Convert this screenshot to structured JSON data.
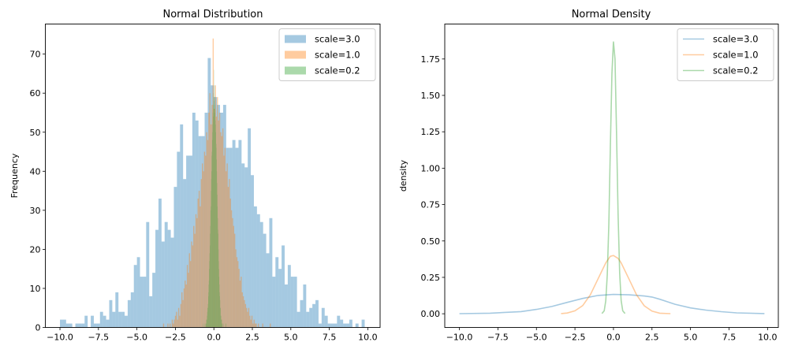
{
  "chart_data": [
    {
      "type": "bar",
      "subtype": "histogram",
      "title": "Normal Distribution",
      "xlabel": "",
      "ylabel": "Frequency",
      "xlim": [
        -10.95,
        10.8
      ],
      "ylim": [
        0,
        77.7
      ],
      "xticks": [
        -10,
        -7.5,
        -5,
        -2.5,
        0,
        2.5,
        5,
        7.5,
        10
      ],
      "xtick_labels": [
        "−10.0",
        "−7.5",
        "−5.0",
        "−2.5",
        "0.0",
        "2.5",
        "5.0",
        "7.5",
        "10.0"
      ],
      "yticks": [
        0,
        10,
        20,
        30,
        40,
        50,
        60,
        70
      ],
      "ytick_labels": [
        "0",
        "10",
        "20",
        "30",
        "40",
        "50",
        "60",
        "70"
      ],
      "grid": false,
      "legend": "top-right",
      "series": [
        {
          "name": "scale=3.0",
          "color": "#1f77b4",
          "alpha": 0.4,
          "bin_start": -10,
          "bin_width": 0.2,
          "values": [
            2,
            2,
            1,
            1,
            0,
            1,
            1,
            1,
            3,
            0,
            3,
            1,
            1,
            4,
            3,
            2,
            7,
            4,
            9,
            4,
            4,
            3,
            7,
            9,
            16,
            18,
            13,
            13,
            27,
            8,
            14,
            25,
            33,
            22,
            27,
            25,
            23,
            36,
            45,
            52,
            38,
            44,
            44,
            55,
            53,
            49,
            49,
            55,
            69,
            62,
            59,
            57,
            55,
            57,
            46,
            46,
            48,
            46,
            48,
            42,
            41,
            51,
            39,
            31,
            29,
            27,
            24,
            19,
            28,
            13,
            18,
            15,
            21,
            11,
            16,
            13,
            13,
            4,
            7,
            11,
            4,
            5,
            6,
            7,
            1,
            5,
            3,
            1,
            1,
            1,
            3,
            2,
            1,
            1,
            2,
            0,
            1,
            0,
            2,
            0
          ]
        },
        {
          "name": "scale=1.0",
          "color": "#ff7f0e",
          "alpha": 0.4,
          "bin_start": -3.3,
          "bin_width": 0.07,
          "values": [
            1,
            0,
            0,
            0,
            1,
            0,
            1,
            0,
            2,
            1,
            2,
            3,
            4,
            2,
            5,
            3,
            6,
            9,
            7,
            10,
            12,
            11,
            16,
            14,
            19,
            17,
            22,
            21,
            26,
            24,
            29,
            28,
            33,
            35,
            31,
            38,
            42,
            40,
            45,
            44,
            50,
            48,
            55,
            60,
            52,
            57,
            74,
            56,
            62,
            54,
            59,
            53,
            55,
            50,
            49,
            51,
            44,
            46,
            40,
            42,
            36,
            38,
            33,
            30,
            28,
            26,
            24,
            20,
            18,
            17,
            15,
            12,
            13,
            9,
            8,
            7,
            6,
            5,
            4,
            5,
            3,
            2,
            3,
            1,
            2,
            1,
            1,
            0,
            1,
            0,
            0,
            0,
            1,
            0,
            0,
            0,
            0,
            0,
            0,
            1
          ]
        },
        {
          "name": "scale=0.2",
          "color": "#2ca02c",
          "alpha": 0.4,
          "bin_start": -0.7,
          "bin_width": 0.015,
          "values": [
            1,
            0,
            0,
            0,
            0,
            1,
            0,
            0,
            0,
            0,
            1,
            0,
            1,
            2,
            1,
            2,
            3,
            2,
            4,
            5,
            6,
            5,
            8,
            9,
            11,
            12,
            15,
            17,
            19,
            21,
            24,
            26,
            30,
            31,
            35,
            38,
            40,
            45,
            44,
            48,
            52,
            50,
            55,
            57,
            54,
            60,
            58,
            66,
            56,
            59,
            62,
            55,
            57,
            53,
            52,
            50,
            46,
            47,
            43,
            40,
            37,
            34,
            31,
            28,
            25,
            24,
            20,
            17,
            15,
            13,
            11,
            9,
            8,
            7,
            5,
            5,
            3,
            3,
            2,
            2,
            1,
            2,
            1,
            0,
            1,
            0,
            0,
            1,
            0,
            0,
            0,
            0,
            0,
            0,
            0,
            0,
            0,
            1,
            0,
            1
          ]
        }
      ]
    },
    {
      "type": "line",
      "title": "Normal Density",
      "xlabel": "",
      "ylabel": "density",
      "xlim": [
        -10.95,
        10.7
      ],
      "ylim": [
        -0.094,
        1.99
      ],
      "xticks": [
        -10,
        -7.5,
        -5,
        -2.5,
        0,
        2.5,
        5,
        7.5,
        10
      ],
      "xtick_labels": [
        "−10.0",
        "−7.5",
        "−5.0",
        "−2.5",
        "0.0",
        "2.5",
        "5.0",
        "7.5",
        "10.0"
      ],
      "yticks": [
        0,
        0.25,
        0.5,
        0.75,
        1.0,
        1.25,
        1.5,
        1.75
      ],
      "ytick_labels": [
        "0.00",
        "0.25",
        "0.50",
        "0.75",
        "1.00",
        "1.25",
        "1.50",
        "1.75"
      ],
      "grid": false,
      "legend": "top-right",
      "series": [
        {
          "name": "scale=3.0",
          "color": "#1f77b4",
          "alpha": 0.4,
          "x": [
            -10,
            -8,
            -6,
            -5,
            -4,
            -3,
            -2,
            -1,
            0,
            1,
            2,
            2.5,
            3,
            4,
            5,
            6,
            7,
            8,
            9.8
          ],
          "y": [
            0.0005,
            0.004,
            0.015,
            0.03,
            0.05,
            0.078,
            0.105,
            0.126,
            0.133,
            0.13,
            0.122,
            0.115,
            0.1,
            0.065,
            0.04,
            0.025,
            0.014,
            0.006,
            0.001
          ]
        },
        {
          "name": "scale=1.0",
          "color": "#ff7f0e",
          "alpha": 0.4,
          "x": [
            -3.4,
            -3,
            -2.5,
            -2,
            -1.5,
            -1,
            -0.5,
            -0.2,
            0,
            0.3,
            0.5,
            1,
            1.5,
            2,
            2.5,
            3,
            3.7
          ],
          "y": [
            0.001,
            0.005,
            0.02,
            0.056,
            0.13,
            0.24,
            0.35,
            0.395,
            0.4,
            0.38,
            0.35,
            0.24,
            0.13,
            0.055,
            0.018,
            0.004,
            0.0005
          ]
        },
        {
          "name": "scale=0.2",
          "color": "#2ca02c",
          "alpha": 0.4,
          "x": [
            -0.75,
            -0.6,
            -0.5,
            -0.4,
            -0.3,
            -0.2,
            -0.1,
            0,
            0.1,
            0.2,
            0.3,
            0.4,
            0.5,
            0.6,
            0.75
          ],
          "y": [
            0.002,
            0.02,
            0.09,
            0.27,
            0.62,
            1.15,
            1.65,
            1.87,
            1.75,
            1.25,
            0.68,
            0.28,
            0.09,
            0.02,
            0.002
          ]
        }
      ]
    }
  ]
}
